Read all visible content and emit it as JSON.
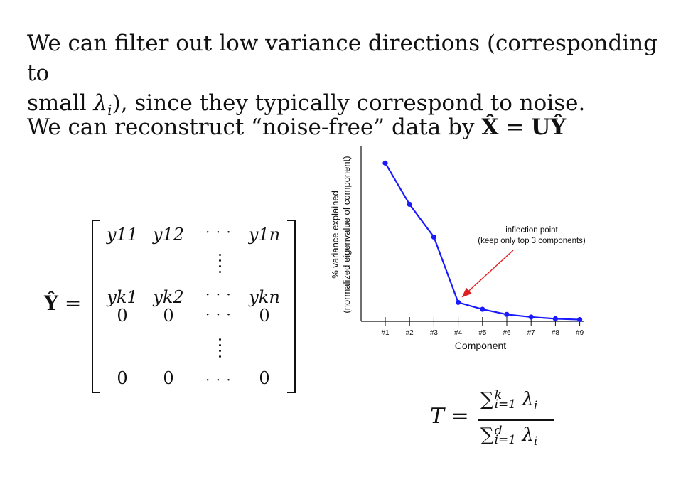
{
  "text": {
    "p1_a": "We can filter out low variance directions (corresponding to",
    "p1_b": "small ",
    "p1_lambda": "λ",
    "p1_i": "i",
    "p1_c": "), since they typically correspond to noise.",
    "p2_a": "We can reconstruct “noise-free” data by ",
    "p2_xhat": "X̂",
    "p2_eq": " = ",
    "p2_uyhat": "UŶ"
  },
  "matrix": {
    "label": "Ŷ",
    "eq": "=",
    "rows": [
      [
        "y11",
        "y12",
        "· · ·",
        "y1n"
      ],
      [
        "yk1",
        "yk2",
        "· · ·",
        "ykn"
      ],
      [
        "0",
        "0",
        "· · ·",
        "0"
      ],
      [
        "0",
        "0",
        "· · ·",
        "0"
      ]
    ]
  },
  "formula": {
    "lhs": "T",
    "eq": "=",
    "num_sum": "∑",
    "num_sup": "k",
    "num_sub": "i=1",
    "num_lambda": "λ",
    "num_i": "i",
    "den_sum": "∑",
    "den_sup": "d",
    "den_sub": "i=1",
    "den_lambda": "λ",
    "den_i": "i"
  },
  "chart_data": {
    "type": "line",
    "categories": [
      "#1",
      "#2",
      "#3",
      "#4",
      "#5",
      "#6",
      "#7",
      "#8",
      "#9"
    ],
    "series": [
      {
        "values": [
          0.92,
          0.68,
          0.49,
          0.11,
          0.07,
          0.04,
          0.025,
          0.015,
          0.01
        ]
      }
    ],
    "xlabel": "Component",
    "ylabel_line1": "% variance explained",
    "ylabel_line2": "(normalized eigenvalue of component)",
    "ylim": [
      0,
      1
    ],
    "grid": false,
    "annotation_line1": "inflection point",
    "annotation_line2": "(keep only top 3 components)",
    "annotation_target_index": 3,
    "line_color": "#1a1aff",
    "arrow_color": "#e02020"
  }
}
